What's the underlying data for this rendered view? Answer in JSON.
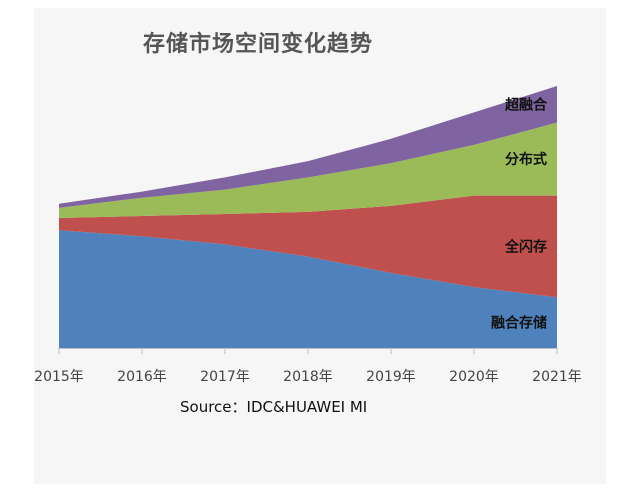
{
  "chart_data": {
    "type": "area",
    "stacked": true,
    "title": "存储市场空间变化趋势",
    "source": "Source：IDC&HUAWEI MI",
    "categories": [
      "2015年",
      "2016年",
      "2017年",
      "2018年",
      "2019年",
      "2020年",
      "2021年"
    ],
    "series": [
      {
        "name": "融合存储",
        "color": "#4f81bd",
        "values": [
          58,
          55,
          51,
          45,
          37,
          30,
          25
        ]
      },
      {
        "name": "全闪存",
        "color": "#c0504d",
        "values": [
          6,
          10,
          15,
          22,
          33,
          45,
          50
        ]
      },
      {
        "name": "分布式",
        "color": "#9bbb59",
        "values": [
          5,
          9,
          12,
          17,
          21,
          25,
          36
        ]
      },
      {
        "name": "超融合",
        "color": "#8064a2",
        "values": [
          2,
          3,
          6,
          8,
          12,
          16,
          18
        ]
      }
    ],
    "ylim": [
      0,
      129
    ],
    "grid": false,
    "legend": "inline-right"
  }
}
